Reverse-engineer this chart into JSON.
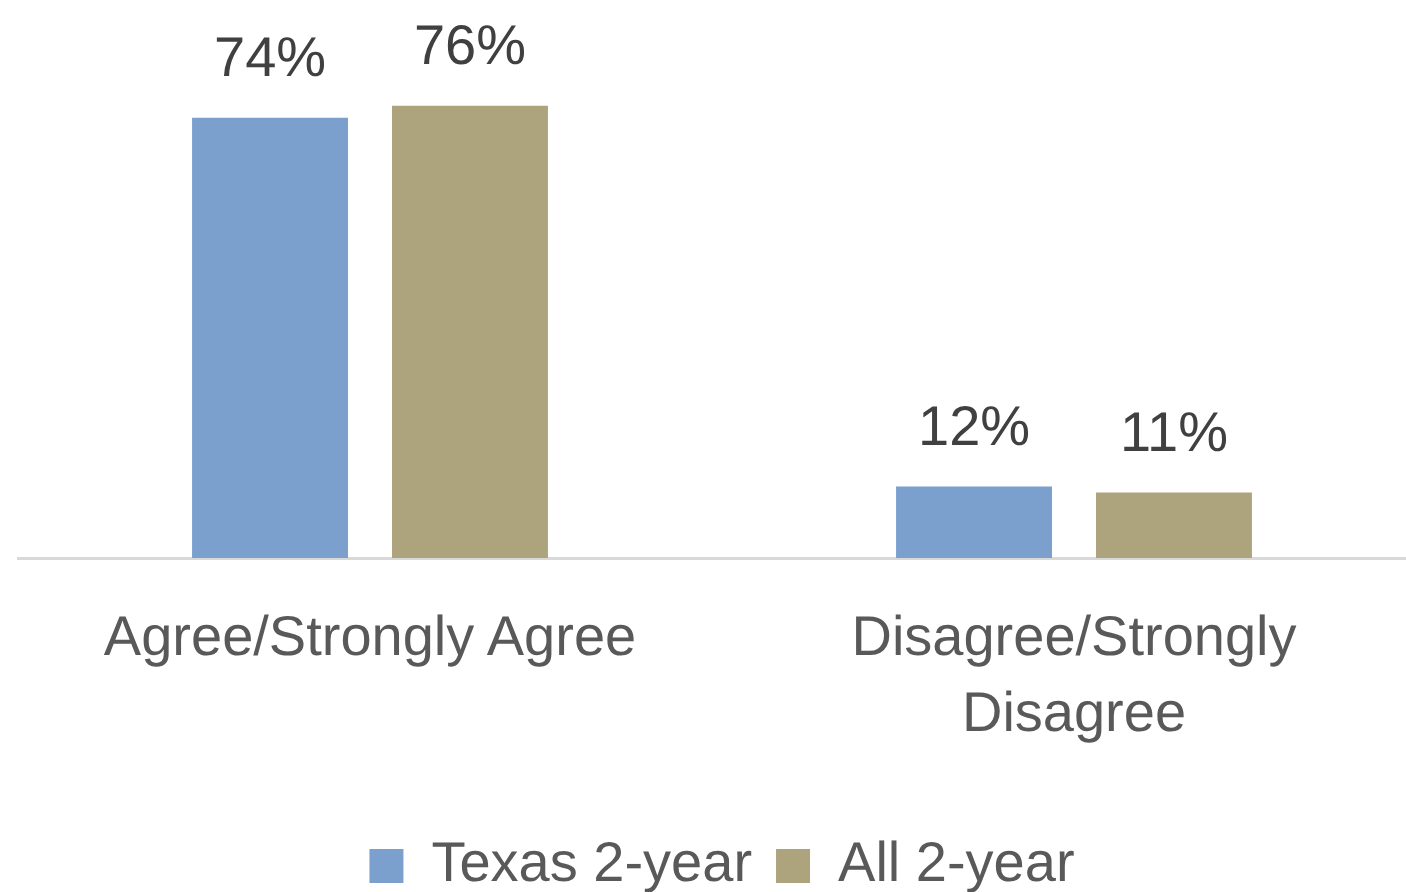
{
  "chart_data": {
    "type": "bar",
    "categories": [
      "Agree/Strongly Agree",
      "Disagree/Strongly Disagree"
    ],
    "series": [
      {
        "name": "Texas 2-year",
        "color": "#7ba0cd",
        "values": [
          74,
          12
        ],
        "value_labels": [
          "74%",
          "12%"
        ]
      },
      {
        "name": "All 2-year",
        "color": "#ada47d",
        "values": [
          76,
          11
        ],
        "value_labels": [
          "76%",
          "11%"
        ]
      }
    ],
    "legend": "bottom"
  }
}
